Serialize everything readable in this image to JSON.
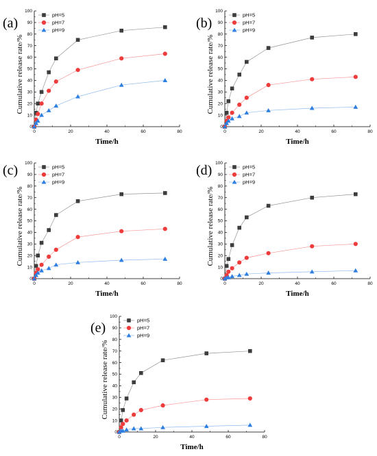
{
  "figure": {
    "panels_order": [
      "a",
      "b",
      "c",
      "d",
      "e"
    ]
  },
  "chart_data": [
    {
      "panel": "(a)",
      "type": "line",
      "xlabel": "Time/h",
      "ylabel": "Cumulative release rate/%",
      "xlim": [
        0,
        80
      ],
      "ylim": [
        0,
        100
      ],
      "xticks": [
        0,
        20,
        40,
        60,
        80
      ],
      "yticks": [
        0,
        10,
        20,
        30,
        40,
        50,
        60,
        70,
        80,
        90,
        100
      ],
      "legend": "top-left",
      "x": [
        0,
        1,
        2,
        4,
        8,
        12,
        24,
        48,
        72
      ],
      "series": [
        {
          "name": "pH=5",
          "marker": "square",
          "color": "#3d3d3d",
          "values": [
            0,
            12,
            20,
            30,
            47,
            59,
            75,
            83,
            86
          ]
        },
        {
          "name": "pH=7",
          "marker": "circle",
          "color": "#ee3b3b",
          "values": [
            0,
            6,
            11,
            20,
            31,
            39,
            49,
            59,
            63
          ]
        },
        {
          "name": "pH=9",
          "marker": "triangle",
          "color": "#2f7fe0",
          "values": [
            0,
            3,
            5,
            10,
            14,
            18,
            26,
            36,
            40
          ]
        }
      ]
    },
    {
      "panel": "(b)",
      "type": "line",
      "xlabel": "Time/h",
      "ylabel": "Cumulative release rate/%",
      "xlim": [
        0,
        80
      ],
      "ylim": [
        0,
        100
      ],
      "xticks": [
        0,
        20,
        40,
        60,
        80
      ],
      "yticks": [
        0,
        10,
        20,
        30,
        40,
        50,
        60,
        70,
        80,
        90,
        100
      ],
      "legend": "top-left",
      "x": [
        0,
        1,
        2,
        4,
        8,
        12,
        24,
        48,
        72
      ],
      "series": [
        {
          "name": "pH=5",
          "marker": "square",
          "color": "#3d3d3d",
          "values": [
            0,
            12,
            22,
            33,
            45,
            56,
            68,
            77,
            80
          ]
        },
        {
          "name": "pH=7",
          "marker": "circle",
          "color": "#ee3b3b",
          "values": [
            0,
            5,
            8,
            12,
            19,
            25,
            36,
            41,
            43
          ]
        },
        {
          "name": "pH=9",
          "marker": "triangle",
          "color": "#2f7fe0",
          "values": [
            0,
            3,
            5,
            7,
            9,
            12,
            14,
            16,
            17
          ]
        }
      ]
    },
    {
      "panel": "(c)",
      "type": "line",
      "xlabel": "Time/h",
      "ylabel": "Cumulative release rate/%",
      "xlim": [
        0,
        80
      ],
      "ylim": [
        0,
        100
      ],
      "xticks": [
        0,
        20,
        40,
        60,
        80
      ],
      "yticks": [
        0,
        10,
        20,
        30,
        40,
        50,
        60,
        70,
        80,
        90,
        100
      ],
      "legend": "top-left",
      "x": [
        0,
        1,
        2,
        4,
        8,
        12,
        24,
        48,
        72
      ],
      "series": [
        {
          "name": "pH=5",
          "marker": "square",
          "color": "#3d3d3d",
          "values": [
            0,
            11,
            20,
            31,
            42,
            55,
            67,
            73,
            74
          ]
        },
        {
          "name": "pH=7",
          "marker": "circle",
          "color": "#ee3b3b",
          "values": [
            0,
            5,
            8,
            12,
            19,
            25,
            36,
            41,
            43
          ]
        },
        {
          "name": "pH=9",
          "marker": "triangle",
          "color": "#2f7fe0",
          "values": [
            0,
            3,
            5,
            7,
            9,
            12,
            14,
            16,
            17
          ]
        }
      ]
    },
    {
      "panel": "(d)",
      "type": "line",
      "xlabel": "Time/h",
      "ylabel": "Cumulative release rate/%",
      "xlim": [
        0,
        80
      ],
      "ylim": [
        0,
        100
      ],
      "xticks": [
        0,
        20,
        40,
        60,
        80
      ],
      "yticks": [
        0,
        10,
        20,
        30,
        40,
        50,
        60,
        70,
        80,
        90,
        100
      ],
      "legend": "top-left",
      "x": [
        0,
        1,
        2,
        4,
        8,
        12,
        24,
        48,
        72
      ],
      "series": [
        {
          "name": "pH=5",
          "marker": "square",
          "color": "#3d3d3d",
          "values": [
            0,
            11,
            17,
            29,
            44,
            53,
            63,
            70,
            73
          ]
        },
        {
          "name": "pH=7",
          "marker": "circle",
          "color": "#ee3b3b",
          "values": [
            0,
            3,
            6,
            9,
            14,
            18,
            22,
            28,
            30
          ]
        },
        {
          "name": "pH=9",
          "marker": "triangle",
          "color": "#2f7fe0",
          "values": [
            0,
            1,
            1,
            2,
            3,
            4,
            5,
            6,
            7
          ]
        }
      ]
    },
    {
      "panel": "(e)",
      "type": "line",
      "xlabel": "Time/h",
      "ylabel": "Cumulative release rate/%",
      "xlim": [
        0,
        80
      ],
      "ylim": [
        0,
        100
      ],
      "xticks": [
        0,
        20,
        40,
        60,
        80
      ],
      "yticks": [
        0,
        10,
        20,
        30,
        40,
        50,
        60,
        70,
        80,
        90,
        100
      ],
      "legend": "top-left",
      "x": [
        0,
        1,
        2,
        4,
        8,
        12,
        24,
        48,
        72
      ],
      "series": [
        {
          "name": "pH=5",
          "marker": "square",
          "color": "#3d3d3d",
          "values": [
            0,
            10,
            19,
            29,
            43,
            51,
            62,
            68,
            70
          ]
        },
        {
          "name": "pH=7",
          "marker": "circle",
          "color": "#ee3b3b",
          "values": [
            0,
            4,
            7,
            10,
            15,
            19,
            23,
            28,
            29
          ]
        },
        {
          "name": "pH=9",
          "marker": "triangle",
          "color": "#2f7fe0",
          "values": [
            0,
            1,
            1,
            2,
            3,
            3,
            4,
            5,
            6
          ]
        }
      ]
    }
  ]
}
